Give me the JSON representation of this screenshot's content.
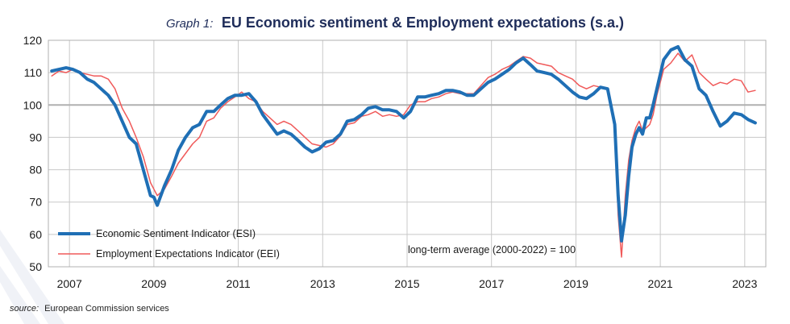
{
  "chart_data": {
    "type": "line",
    "title_prefix": "Graph 1:",
    "title": "EU Economic sentiment & Employment expectations (s.a.)",
    "ylim": [
      50,
      120
    ],
    "yticks": [
      "50",
      "60",
      "70",
      "80",
      "90",
      "100",
      "110",
      "120"
    ],
    "xlim": [
      2006.5,
      2023.5
    ],
    "xticks": [
      "2007",
      "2009",
      "2011",
      "2013",
      "2015",
      "2017",
      "2019",
      "2021",
      "2023"
    ],
    "reference_line": 100,
    "annotation": "long-term average (2000-2022) = 100",
    "source_label": "source:",
    "source_text": "European Commission services",
    "colors": {
      "esi": "#1f6fb5",
      "eei": "#f05a5a",
      "grid": "#c8c8c8",
      "ref": "#b0b0b0"
    },
    "series": [
      {
        "name": "Economic Sentiment Indicator (ESI)",
        "x": [
          2006.58,
          2006.75,
          2006.92,
          2007.08,
          2007.25,
          2007.42,
          2007.58,
          2007.75,
          2007.92,
          2008.08,
          2008.25,
          2008.42,
          2008.58,
          2008.75,
          2008.92,
          2009.0,
          2009.08,
          2009.25,
          2009.42,
          2009.58,
          2009.75,
          2009.92,
          2010.08,
          2010.25,
          2010.42,
          2010.58,
          2010.75,
          2010.92,
          2011.08,
          2011.25,
          2011.42,
          2011.58,
          2011.75,
          2011.92,
          2012.08,
          2012.25,
          2012.42,
          2012.58,
          2012.75,
          2012.92,
          2013.08,
          2013.25,
          2013.42,
          2013.58,
          2013.75,
          2013.92,
          2014.08,
          2014.25,
          2014.42,
          2014.58,
          2014.75,
          2014.92,
          2015.08,
          2015.25,
          2015.42,
          2015.58,
          2015.75,
          2015.92,
          2016.08,
          2016.25,
          2016.42,
          2016.58,
          2016.75,
          2016.92,
          2017.08,
          2017.25,
          2017.42,
          2017.58,
          2017.75,
          2017.92,
          2018.08,
          2018.25,
          2018.42,
          2018.58,
          2018.75,
          2018.92,
          2019.08,
          2019.25,
          2019.42,
          2019.58,
          2019.75,
          2019.92,
          2020.0,
          2020.08,
          2020.17,
          2020.25,
          2020.33,
          2020.42,
          2020.5,
          2020.58,
          2020.67,
          2020.75,
          2020.83,
          2020.92,
          2021.08,
          2021.25,
          2021.42,
          2021.58,
          2021.75,
          2021.92,
          2022.08,
          2022.25,
          2022.42,
          2022.58,
          2022.75,
          2022.92,
          2023.08,
          2023.25
        ],
        "values": [
          110.5,
          111,
          111.5,
          111,
          110,
          108,
          107,
          105,
          103,
          100,
          95,
          90,
          88,
          80,
          72,
          71.5,
          69,
          75,
          80,
          86,
          90,
          93,
          94,
          98,
          98,
          100,
          102,
          103,
          103,
          103.5,
          101,
          97,
          94,
          91,
          92,
          91,
          89,
          87,
          85.5,
          86.5,
          88.5,
          89,
          91,
          95,
          95.5,
          97,
          99,
          99.5,
          98.5,
          98.5,
          98,
          96,
          98,
          102.5,
          102.5,
          103,
          103.5,
          104.5,
          104.5,
          104,
          103,
          103,
          105,
          107,
          108,
          109.5,
          111,
          113,
          114.5,
          112.5,
          110.5,
          110,
          109.5,
          108,
          106,
          104,
          102.5,
          102,
          103.5,
          105.5,
          105,
          94,
          72,
          58,
          66,
          78,
          87,
          91,
          93,
          91,
          96,
          96,
          100,
          105,
          114,
          117,
          118,
          114,
          112,
          105,
          103,
          98,
          93.5,
          95,
          97.5,
          97,
          95.5,
          94.5
        ]
      },
      {
        "name": "Employment Expectations Indicator (EEI)",
        "x": [
          2006.58,
          2006.75,
          2006.92,
          2007.08,
          2007.25,
          2007.42,
          2007.58,
          2007.75,
          2007.92,
          2008.08,
          2008.25,
          2008.42,
          2008.58,
          2008.75,
          2008.92,
          2009.0,
          2009.08,
          2009.25,
          2009.42,
          2009.58,
          2009.75,
          2009.92,
          2010.08,
          2010.25,
          2010.42,
          2010.58,
          2010.75,
          2010.92,
          2011.08,
          2011.25,
          2011.42,
          2011.58,
          2011.75,
          2011.92,
          2012.08,
          2012.25,
          2012.42,
          2012.58,
          2012.75,
          2012.92,
          2013.08,
          2013.25,
          2013.42,
          2013.58,
          2013.75,
          2013.92,
          2014.08,
          2014.25,
          2014.42,
          2014.58,
          2014.75,
          2014.92,
          2015.08,
          2015.25,
          2015.42,
          2015.58,
          2015.75,
          2015.92,
          2016.08,
          2016.25,
          2016.42,
          2016.58,
          2016.75,
          2016.92,
          2017.08,
          2017.25,
          2017.42,
          2017.58,
          2017.75,
          2017.92,
          2018.08,
          2018.25,
          2018.42,
          2018.58,
          2018.75,
          2018.92,
          2019.08,
          2019.25,
          2019.42,
          2019.58,
          2019.75,
          2019.92,
          2020.0,
          2020.08,
          2020.17,
          2020.25,
          2020.33,
          2020.42,
          2020.5,
          2020.58,
          2020.67,
          2020.75,
          2020.83,
          2020.92,
          2021.08,
          2021.25,
          2021.42,
          2021.58,
          2021.75,
          2021.92,
          2022.08,
          2022.25,
          2022.42,
          2022.58,
          2022.75,
          2022.92,
          2023.08,
          2023.25
        ],
        "values": [
          109,
          110.5,
          110,
          111,
          110,
          109.5,
          109,
          109,
          108,
          105,
          99,
          95,
          90,
          84,
          76,
          74,
          72,
          74,
          78,
          82,
          85,
          88,
          90,
          95,
          96,
          99,
          101,
          102.5,
          104,
          102,
          101,
          98,
          96,
          94,
          95,
          94,
          92,
          90,
          88,
          87.5,
          87,
          88,
          90.5,
          94,
          94.5,
          96.5,
          97,
          98,
          96.5,
          97,
          96.5,
          97,
          100,
          101,
          101,
          102,
          102.5,
          103.5,
          104,
          103.5,
          103.5,
          103.5,
          106,
          108.5,
          109.5,
          111,
          112,
          113.5,
          115,
          114.5,
          113,
          112.5,
          112,
          110,
          109,
          108,
          106,
          105,
          106,
          105.5,
          105,
          93,
          66,
          53,
          72,
          83,
          89,
          93,
          95,
          92,
          93,
          94,
          97,
          103,
          111,
          113,
          116,
          113.5,
          115.5,
          110,
          108,
          106,
          107,
          106.5,
          108,
          107.5,
          104,
          104.5
        ]
      }
    ]
  }
}
